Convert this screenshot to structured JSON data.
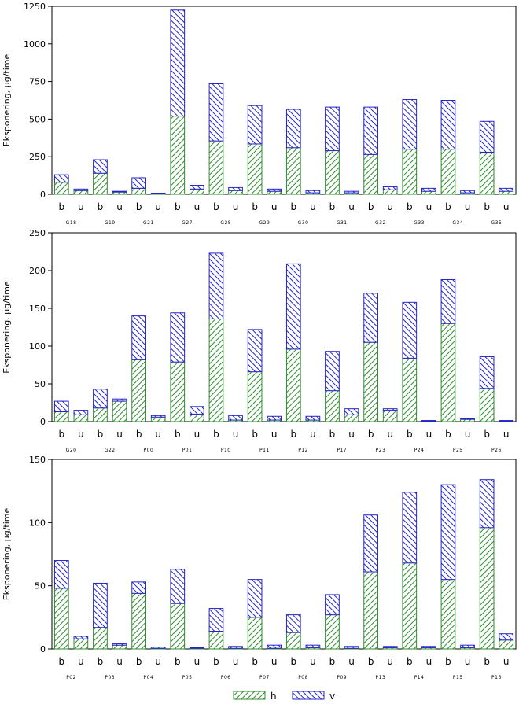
{
  "colors": {
    "h": "#2e8b2e",
    "v": "#2424c8",
    "frame": "#000000"
  },
  "legend": {
    "h_label": "h",
    "v_label": "v"
  },
  "chart_data": [
    {
      "type": "bar",
      "stacked": true,
      "ylabel": "Eksponering, µg/time",
      "ylim": [
        0,
        1250
      ],
      "yticks": [
        0,
        250,
        500,
        750,
        1000,
        1250
      ],
      "subcategories": [
        "b",
        "u"
      ],
      "groups": [
        "G18",
        "G19",
        "G21",
        "G27",
        "G28",
        "G29",
        "G30",
        "G31",
        "G32",
        "G33",
        "G34",
        "G35"
      ],
      "series": [
        {
          "name": "h",
          "values": [
            80,
            25,
            140,
            15,
            40,
            5,
            520,
            35,
            355,
            25,
            335,
            20,
            310,
            10,
            290,
            10,
            265,
            30,
            300,
            20,
            300,
            10,
            280,
            20
          ]
        },
        {
          "name": "v",
          "values": [
            50,
            10,
            90,
            5,
            70,
            3,
            705,
            25,
            380,
            20,
            255,
            15,
            255,
            15,
            290,
            10,
            315,
            20,
            330,
            20,
            325,
            15,
            205,
            20
          ]
        }
      ]
    },
    {
      "type": "bar",
      "stacked": true,
      "ylabel": "Eksponering, µg/time",
      "ylim": [
        0,
        250
      ],
      "yticks": [
        0,
        50,
        100,
        150,
        200,
        250
      ],
      "subcategories": [
        "b",
        "u"
      ],
      "groups": [
        "G20",
        "G22",
        "P00",
        "P01",
        "P10",
        "P11",
        "P12",
        "P17",
        "P23",
        "P24",
        "P25",
        "P26"
      ],
      "series": [
        {
          "name": "h",
          "values": [
            13,
            9,
            18,
            27,
            82,
            6,
            79,
            10,
            136,
            2,
            66,
            2,
            96,
            2,
            41,
            9,
            105,
            15,
            84,
            0.5,
            130,
            3,
            44,
            0.5
          ]
        },
        {
          "name": "v",
          "values": [
            14,
            6,
            25,
            3,
            58,
            2,
            65,
            10,
            87,
            6,
            56,
            5,
            113,
            5,
            52,
            8,
            65,
            2,
            74,
            1,
            58,
            1,
            42,
            1
          ]
        }
      ]
    },
    {
      "type": "bar",
      "stacked": true,
      "ylabel": "Eksponering, µg/time",
      "ylim": [
        0,
        150
      ],
      "yticks": [
        0,
        50,
        100,
        150
      ],
      "subcategories": [
        "b",
        "u"
      ],
      "groups": [
        "P02",
        "P03",
        "P04",
        "P05",
        "P06",
        "P07",
        "P08",
        "P09",
        "P13",
        "P14",
        "P15",
        "P16"
      ],
      "series": [
        {
          "name": "h",
          "values": [
            48,
            8,
            17,
            3,
            44,
            0.5,
            36,
            0.5,
            14,
            0.5,
            25,
            0.5,
            13,
            1,
            27,
            0.5,
            61,
            1,
            68,
            1,
            55,
            1,
            96,
            7
          ]
        },
        {
          "name": "v",
          "values": [
            22,
            2,
            35,
            1,
            9,
            1,
            27,
            0.5,
            18,
            1.5,
            30,
            2.5,
            14,
            2,
            16,
            1.5,
            45,
            1,
            56,
            1,
            75,
            2,
            38,
            5
          ]
        }
      ]
    }
  ]
}
